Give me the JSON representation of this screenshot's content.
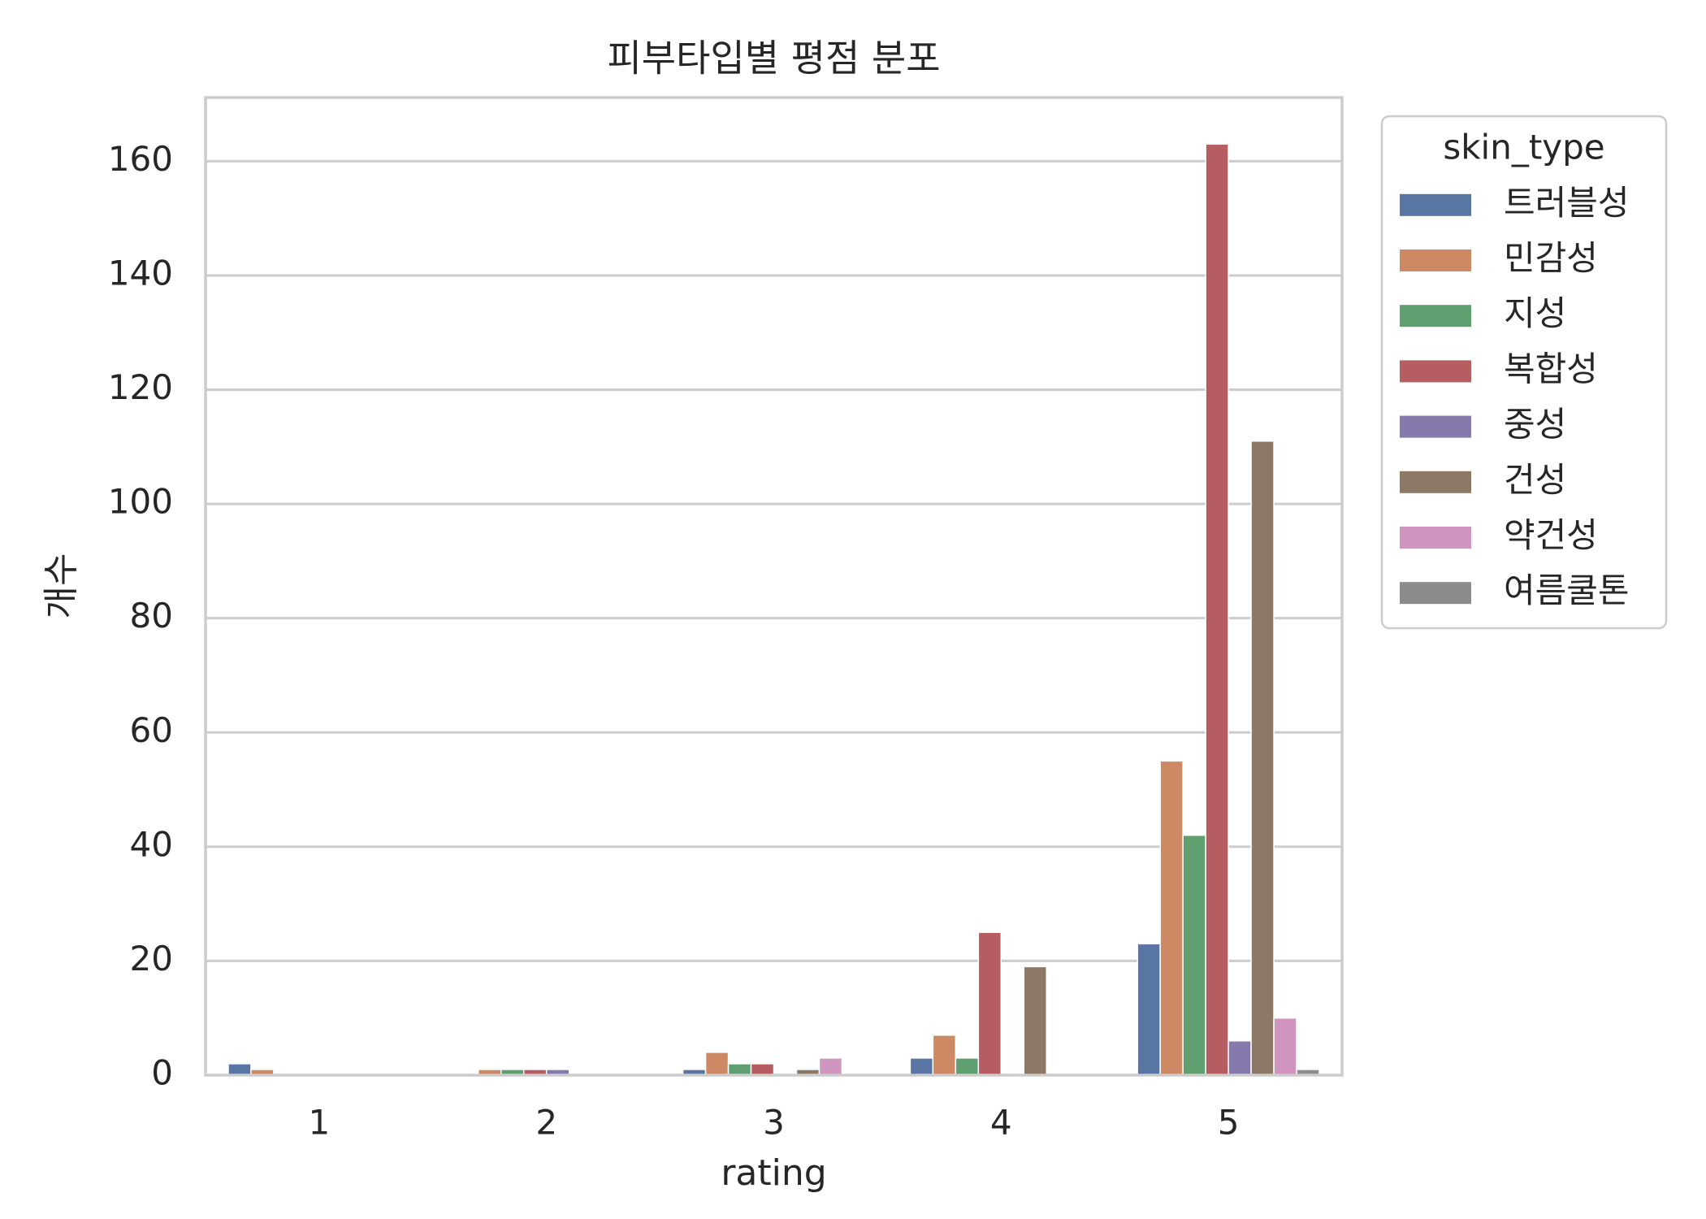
{
  "chart_data": {
    "type": "bar",
    "title": "피부타입별 평점 분포",
    "xlabel": "rating",
    "ylabel": "개수",
    "categories": [
      "1",
      "2",
      "3",
      "4",
      "5"
    ],
    "ylim": [
      0,
      171.15
    ],
    "yticks": [
      0,
      20,
      40,
      60,
      80,
      100,
      120,
      140,
      160
    ],
    "grid": "y",
    "legend": {
      "title": "skin_type",
      "placement": "outside-right"
    },
    "series": [
      {
        "name": "트러블성",
        "color": "#5975A4",
        "values": [
          2,
          0,
          1,
          3,
          23
        ]
      },
      {
        "name": "민감성",
        "color": "#CC8963",
        "values": [
          1,
          1,
          4,
          7,
          55
        ]
      },
      {
        "name": "지성",
        "color": "#5F9E6E",
        "values": [
          0,
          1,
          2,
          3,
          42
        ]
      },
      {
        "name": "복합성",
        "color": "#B55D60",
        "values": [
          0,
          1,
          2,
          25,
          163
        ]
      },
      {
        "name": "중성",
        "color": "#857AAB",
        "values": [
          0,
          1,
          0,
          0,
          6
        ]
      },
      {
        "name": "건성",
        "color": "#8D7866",
        "values": [
          0,
          0,
          1,
          19,
          111
        ]
      },
      {
        "name": "약건성",
        "color": "#D095BF",
        "values": [
          0,
          0,
          3,
          0,
          10
        ]
      },
      {
        "name": "여름쿨톤",
        "color": "#8C8C8C",
        "values": [
          0,
          0,
          0,
          0,
          1
        ]
      }
    ]
  }
}
